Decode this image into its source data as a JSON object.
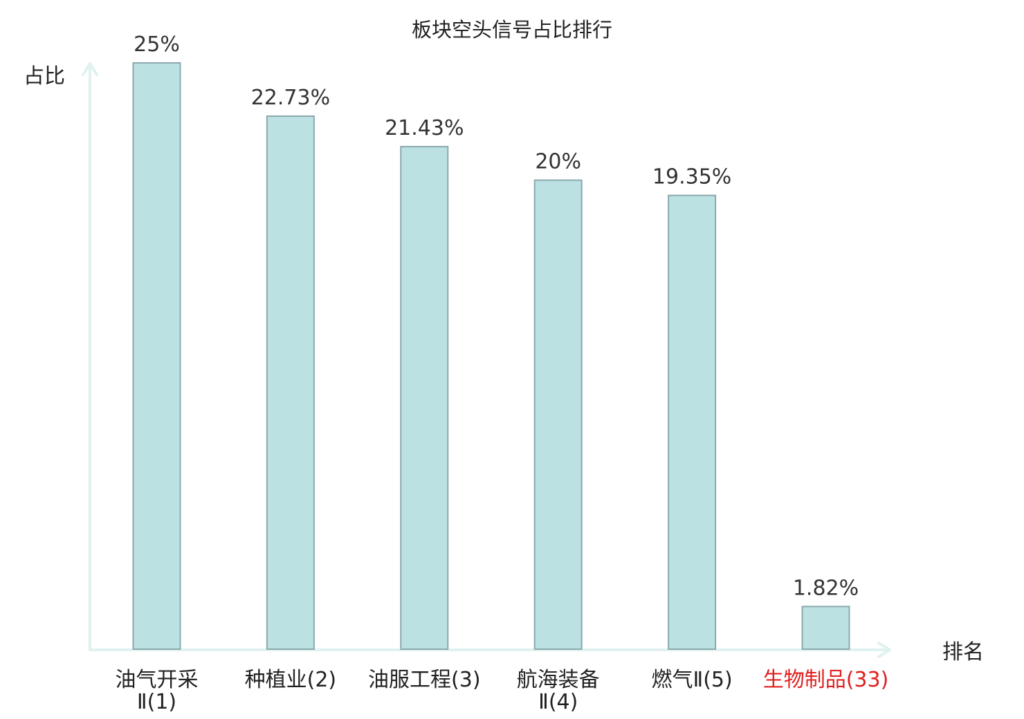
{
  "chart_data": {
    "type": "bar",
    "title": "板块空头信号占比排行",
    "ylabel": "占比",
    "xlabel": "排名",
    "ylim": [
      0,
      25
    ],
    "grid": false,
    "categories": [
      {
        "lines": [
          "油气开采",
          "Ⅱ(1)"
        ],
        "highlight": false
      },
      {
        "lines": [
          "种植业(2)"
        ],
        "highlight": false
      },
      {
        "lines": [
          "油服工程(3)"
        ],
        "highlight": false
      },
      {
        "lines": [
          "航海装备",
          "Ⅱ(4)"
        ],
        "highlight": false
      },
      {
        "lines": [
          "燃气Ⅱ(5)"
        ],
        "highlight": false
      },
      {
        "lines": [
          "生物制品(33)"
        ],
        "highlight": true
      }
    ],
    "values": [
      25,
      22.73,
      21.43,
      20,
      19.35,
      1.82
    ],
    "value_labels": [
      "25%",
      "22.73%",
      "21.43%",
      "20%",
      "19.35%",
      "1.82%"
    ],
    "colors": {
      "bar_fill": "#bce1e3",
      "bar_stroke": "#8aa9ad",
      "axis": "#dff2ef",
      "label": "#222222",
      "highlight": "#e02020"
    }
  }
}
